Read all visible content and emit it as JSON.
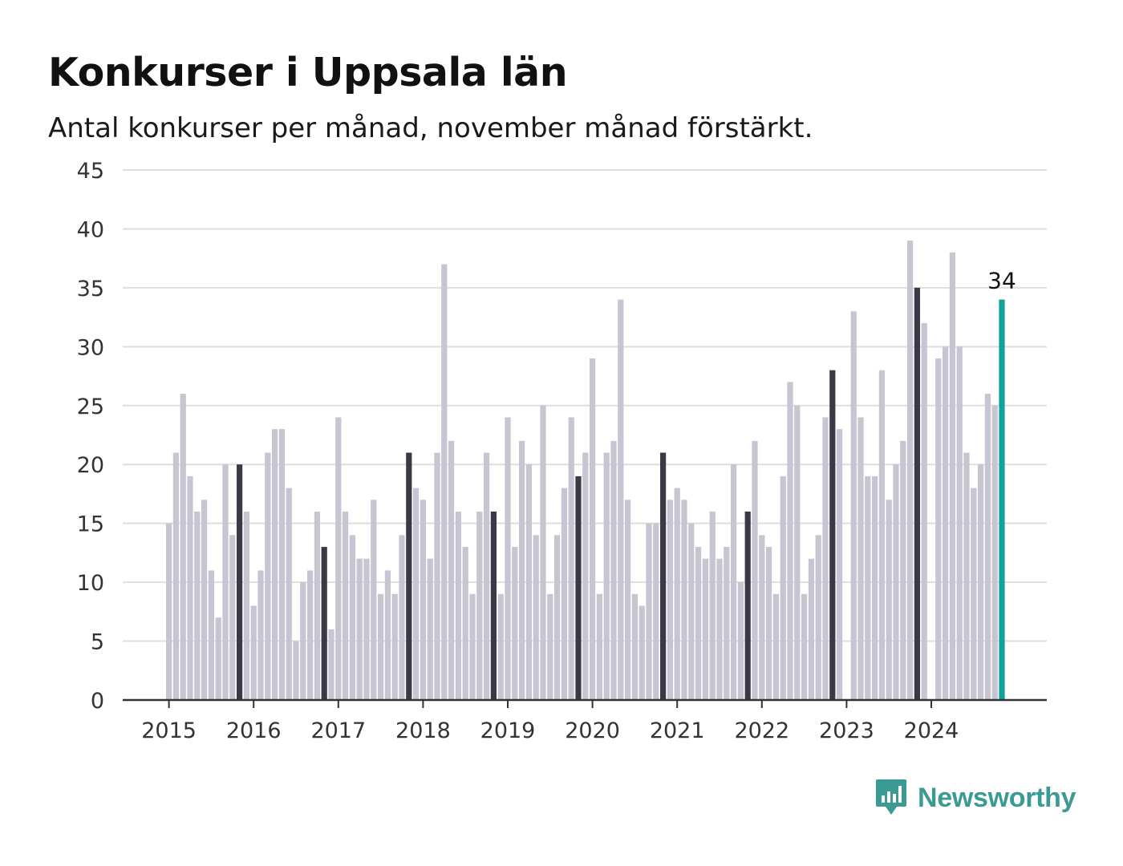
{
  "title": "Konkurser i Uppsala län",
  "subtitle": "Antal konkurser per månad, november månad förstärkt.",
  "brand": {
    "name": "Newsworthy",
    "color": "#3b9a94",
    "icon": "bar-chart-bubble-icon"
  },
  "colors": {
    "bar": "#c6c5d1",
    "november": "#3a3a47",
    "latest": "#0fa39b",
    "grid": "#dedede",
    "axis": "#333333"
  },
  "chart_data": {
    "type": "bar",
    "start": "2015-01",
    "ylim": [
      0,
      45
    ],
    "y_ticks": [
      0,
      5,
      10,
      15,
      20,
      25,
      30,
      35,
      40,
      45
    ],
    "x_tick_labels": [
      "2015",
      "2016",
      "2017",
      "2018",
      "2019",
      "2020",
      "2021",
      "2022",
      "2023",
      "2024"
    ],
    "highlight_month": "November",
    "latest_label": "34",
    "values": [
      15,
      21,
      26,
      19,
      16,
      17,
      11,
      7,
      20,
      14,
      20,
      16,
      8,
      11,
      21,
      23,
      23,
      18,
      5,
      10,
      11,
      16,
      13,
      6,
      24,
      16,
      14,
      12,
      12,
      17,
      9,
      11,
      9,
      14,
      21,
      18,
      17,
      12,
      21,
      37,
      22,
      16,
      13,
      9,
      16,
      21,
      16,
      9,
      24,
      13,
      22,
      20,
      14,
      25,
      9,
      14,
      18,
      24,
      19,
      21,
      29,
      9,
      21,
      22,
      34,
      17,
      9,
      8,
      15,
      15,
      21,
      17,
      18,
      17,
      15,
      13,
      12,
      16,
      12,
      13,
      20,
      10,
      16,
      22,
      14,
      13,
      9,
      19,
      27,
      25,
      9,
      12,
      14,
      24,
      28,
      23,
      0,
      33,
      24,
      19,
      19,
      28,
      17,
      20,
      22,
      39,
      35,
      32,
      0,
      29,
      30,
      38,
      30,
      21,
      18,
      20,
      26,
      25,
      34
    ]
  }
}
